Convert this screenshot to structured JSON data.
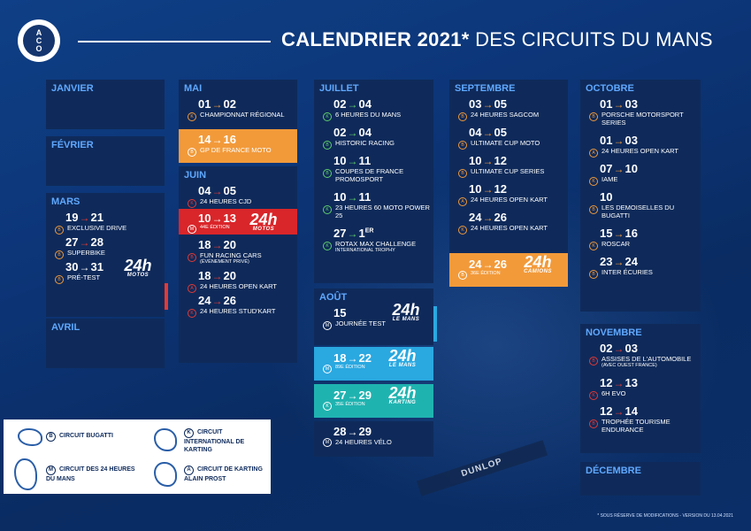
{
  "title_bold": "CALENDRIER 2021*",
  "title_light": "DES CIRCUITS DU MANS",
  "logo": {
    "top": "A",
    "mid": "C",
    "bot": "O"
  },
  "months": {
    "janvier": "JANVIER",
    "fevrier": "FÉVRIER",
    "mars": "MARS",
    "avril": "AVRIL",
    "mai": "MAI",
    "juin": "JUIN",
    "juillet": "JUILLET",
    "aout": "AOÛT",
    "septembre": "SEPTEMBRE",
    "octobre": "OCTOBRE",
    "novembre": "NOVEMBRE",
    "decembre": "DÉCEMBRE"
  },
  "mars": [
    {
      "d1": "19",
      "d2": "21",
      "name": "EXCLUSIVE DRIVE",
      "c": "B"
    },
    {
      "d1": "27",
      "d2": "28",
      "name": "SUPERBIKE",
      "c": "B"
    },
    {
      "d1": "30",
      "d2": "31",
      "name": "PRÉ-TEST",
      "c": "B"
    }
  ],
  "mai": [
    {
      "d1": "01",
      "d2": "02",
      "name": "CHAMPIONNAT RÉGIONAL",
      "c": "K"
    },
    {
      "d1": "14",
      "d2": "16",
      "name": "GP DE FRANCE MOTO",
      "c": "B"
    }
  ],
  "juin": [
    {
      "d1": "04",
      "d2": "05",
      "name": "24 HEURES CJD",
      "c": "K"
    },
    {
      "d1": "10",
      "d2": "13",
      "name": "44E ÉDITION",
      "c": "M"
    },
    {
      "d1": "18",
      "d2": "20",
      "name": "FUN RACING CARS",
      "note": "(ÉVÉNEMENT PRIVÉ)",
      "c": "B"
    },
    {
      "d1": "18",
      "d2": "20",
      "name": "24 HEURES OPEN KART",
      "c": "A"
    },
    {
      "d1": "24",
      "d2": "26",
      "name": "24 HEURES STUD'KART",
      "c": "K"
    }
  ],
  "juillet": [
    {
      "d1": "02",
      "d2": "04",
      "name": "6 HEURES DU MANS",
      "c": "K"
    },
    {
      "d1": "02",
      "d2": "04",
      "name": "HISTORIC RACING",
      "c": "B"
    },
    {
      "d1": "10",
      "d2": "11",
      "name": "COUPES DE FRANCE PROMOSPORT",
      "c": "B"
    },
    {
      "d1": "10",
      "d2": "11",
      "name": "23 HEURES 60 MOTO POWER 25",
      "c": "K"
    },
    {
      "d1": "27",
      "d2": "1",
      "sup": "ER",
      "name": "ROTAX MAX CHALLENGE",
      "note": "INTERNATIONAL TROPHY",
      "c": "K"
    }
  ],
  "aout": [
    {
      "d1": "15",
      "name": "JOURNÉE TEST",
      "c": "M"
    },
    {
      "d1": "18",
      "d2": "22",
      "name": "89E ÉDITION",
      "c": "M"
    },
    {
      "d1": "27",
      "d2": "29",
      "name": "35E ÉDITION",
      "c": "K"
    },
    {
      "d1": "28",
      "d2": "29",
      "name": "24 HEURES VÉLO",
      "c": "M"
    }
  ],
  "septembre": [
    {
      "d1": "03",
      "d2": "05",
      "name": "24 HEURES SAGCOM",
      "c": "B"
    },
    {
      "d1": "04",
      "d2": "05",
      "name": "ULTIMATE CUP MOTO",
      "c": "B"
    },
    {
      "d1": "10",
      "d2": "12",
      "name": "ULTIMATE CUP SERIES",
      "c": "B"
    },
    {
      "d1": "10",
      "d2": "12",
      "name": "24 HEURES OPEN KART",
      "c": "A"
    },
    {
      "d1": "24",
      "d2": "26",
      "name": "24 HEURES OPEN KART",
      "c": "K"
    },
    {
      "d1": "24",
      "d2": "26",
      "name": "36E ÉDITION",
      "c": "B"
    }
  ],
  "octobre": [
    {
      "d1": "01",
      "d2": "03",
      "name": "PORSCHE MOTORSPORT SERIES",
      "c": "B"
    },
    {
      "d1": "01",
      "d2": "03",
      "name": "24 HEURES OPEN KART",
      "c": "A"
    },
    {
      "d1": "07",
      "d2": "10",
      "name": "IAME",
      "c": "K"
    },
    {
      "d1": "10",
      "name": "LES DEMOISELLES DU BUGATTI",
      "c": "B"
    },
    {
      "d1": "15",
      "d2": "16",
      "name": "ROSCAR",
      "c": "K"
    },
    {
      "d1": "23",
      "d2": "24",
      "name": "INTER ÉCURIES",
      "c": "B"
    }
  ],
  "novembre": [
    {
      "d1": "02",
      "d2": "03",
      "name": "ASSISES DE L'AUTOMOBILE",
      "note": "(AVEC OUEST FRANCE)",
      "c": "B"
    },
    {
      "d1": "12",
      "d2": "13",
      "name": "6H EVO",
      "c": "K"
    },
    {
      "d1": "12",
      "d2": "14",
      "name": "TROPHÉE TOURISME ENDURANCE",
      "c": "B"
    }
  ],
  "logo24": {
    "motos": "MOTOS",
    "lemans": "LE MANS",
    "karting": "KARTING",
    "camions": "CAMIONS",
    "h24": "24h"
  },
  "legend": [
    {
      "c": "B",
      "name": "CIRCUIT BUGATTI"
    },
    {
      "c": "M",
      "name": "CIRCUIT DES 24 HEURES DU MANS"
    },
    {
      "c": "K",
      "name": "CIRCUIT INTERNATIONAL DE KARTING"
    },
    {
      "c": "A",
      "name": "CIRCUIT DE KARTING ALAIN PROST"
    }
  ],
  "footer": "* SOUS RÉSERVE DE MODIFICATIONS - VERSION DU 13.04.2021",
  "banner": "DUNLOP",
  "colors": {
    "bg": "#0c3577",
    "block": "#0f2a5a",
    "month": "#5fa8ff",
    "red": "#e53935",
    "orange": "#f29a3a",
    "cyan": "#2aa8e0",
    "teal": "#1fb3b0"
  }
}
